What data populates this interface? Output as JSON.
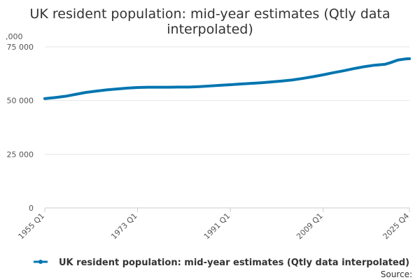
{
  "chart_data": {
    "type": "line",
    "title": "UK resident population: mid-year estimates (Qtly data interpolated)",
    "title_lines": [
      "UK resident population: mid-year estimates (Qtly data",
      "interpolated)"
    ],
    "unit_label": ",000",
    "xlabel": "",
    "ylabel": "",
    "ylim": [
      0,
      75000
    ],
    "yticks": [
      {
        "value": 0,
        "label": "0"
      },
      {
        "value": 25000,
        "label": "25 000"
      },
      {
        "value": 50000,
        "label": "50 000"
      },
      {
        "value": 75000,
        "label": "75 000"
      }
    ],
    "xticks": [
      {
        "year": 1955,
        "label": "1955 Q1"
      },
      {
        "year": 1973,
        "label": "1973 Q1"
      },
      {
        "year": 1991,
        "label": "1991 Q1"
      },
      {
        "year": 2009,
        "label": "2009 Q1"
      },
      {
        "year": 2025.75,
        "label": "2025 Q4"
      }
    ],
    "xlim": [
      1955,
      2025.75
    ],
    "grid": true,
    "legend_position": "bottom",
    "series": [
      {
        "name": "UK resident population: mid-year estimates (Qtly data interpolated)",
        "color": "#0075b0",
        "points": [
          [
            1955,
            50900
          ],
          [
            1957,
            51400
          ],
          [
            1959,
            52000
          ],
          [
            1961,
            52900
          ],
          [
            1963,
            53800
          ],
          [
            1965,
            54400
          ],
          [
            1967,
            55000
          ],
          [
            1969,
            55400
          ],
          [
            1971,
            55800
          ],
          [
            1973,
            56100
          ],
          [
            1975,
            56200
          ],
          [
            1977,
            56200
          ],
          [
            1979,
            56200
          ],
          [
            1981,
            56300
          ],
          [
            1983,
            56300
          ],
          [
            1985,
            56500
          ],
          [
            1987,
            56800
          ],
          [
            1989,
            57100
          ],
          [
            1991,
            57400
          ],
          [
            1993,
            57700
          ],
          [
            1995,
            58000
          ],
          [
            1997,
            58300
          ],
          [
            1999,
            58700
          ],
          [
            2001,
            59100
          ],
          [
            2003,
            59600
          ],
          [
            2005,
            60300
          ],
          [
            2007,
            61100
          ],
          [
            2009,
            62000
          ],
          [
            2011,
            63000
          ],
          [
            2013,
            63900
          ],
          [
            2015,
            64900
          ],
          [
            2017,
            65800
          ],
          [
            2019,
            66500
          ],
          [
            2021,
            66900
          ],
          [
            2022,
            67600
          ],
          [
            2023.5,
            68900
          ],
          [
            2025,
            69400
          ],
          [
            2025.75,
            69500
          ]
        ]
      }
    ],
    "source_label": "Source:"
  }
}
